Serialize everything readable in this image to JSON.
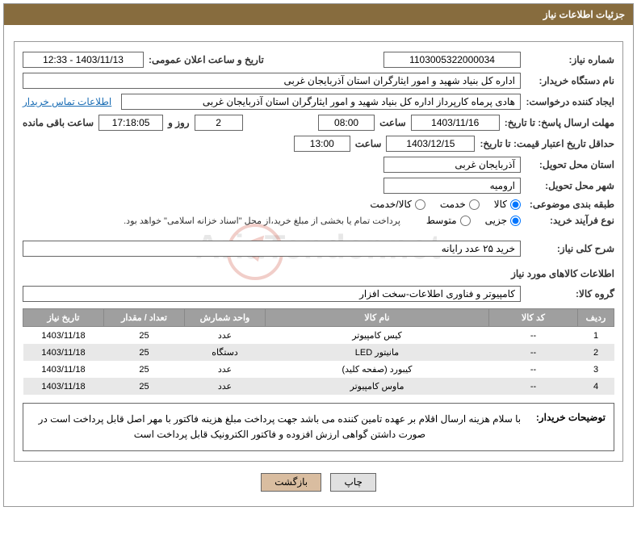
{
  "header": {
    "title": "جزئیات اطلاعات نیاز"
  },
  "fields": {
    "request_no_label": "شماره نیاز:",
    "request_no": "1103005322000034",
    "announce_label": "تاریخ و ساعت اعلان عمومی:",
    "announce_value": "1403/11/13 - 12:33",
    "buyer_org_label": "نام دستگاه خریدار:",
    "buyer_org": "اداره کل بنیاد شهید و امور ایثارگران استان آذربایجان غربی",
    "creator_label": "ایجاد کننده درخواست:",
    "creator": "هادی پرماه کارپرداز اداره کل بنیاد شهید و امور ایثارگران استان آذربایجان غربی",
    "contact_link": "اطلاعات تماس خریدار",
    "deadline_label": "مهلت ارسال پاسخ: تا تاریخ:",
    "deadline_date": "1403/11/16",
    "time_label": "ساعت",
    "deadline_time": "08:00",
    "days_count": "2",
    "days_and": "روز و",
    "remaining_time": "17:18:05",
    "remaining_label": "ساعت باقی مانده",
    "validity_label": "حداقل تاریخ اعتبار قیمت: تا تاریخ:",
    "validity_date": "1403/12/15",
    "validity_time": "13:00",
    "province_label": "استان محل تحویل:",
    "province": "آذربایجان غربی",
    "city_label": "شهر محل تحویل:",
    "city": "ارومیه",
    "category_label": "طبقه بندی موضوعی:",
    "category_opts": {
      "goods": "کالا",
      "service": "خدمت",
      "goods_service": "کالا/خدمت"
    },
    "purchase_type_label": "نوع فرآیند خرید:",
    "purchase_opts": {
      "partial": "جزیی",
      "medium": "متوسط"
    },
    "purchase_note": "پرداخت تمام یا بخشی از مبلغ خرید،از محل \"اسناد خزانه اسلامی\" خواهد بود.",
    "summary_label": "شرح کلی نیاز:",
    "summary": "خرید ۲۵ عدد رایانه",
    "goods_section": "اطلاعات کالاهای مورد نیاز",
    "goods_group_label": "گروه کالا:",
    "goods_group": "کامپیوتر و فناوری اطلاعات-سخت افزار",
    "buyer_note_label": "توضیحات خریدار:",
    "buyer_note": "با سلام هزینه ارسال اقلام بر عهده تامین کننده می باشد جهت پرداخت مبلغ هزینه فاکتور با مهر اصل قابل پرداخت است در صورت داشتن گواهی ارزش افزوده و فاکتور الکترونیک قابل پرداخت است"
  },
  "table": {
    "headers": {
      "row": "ردیف",
      "code": "کد کالا",
      "name": "نام کالا",
      "unit": "واحد شمارش",
      "qty": "تعداد / مقدار",
      "date": "تاریخ نیاز"
    },
    "rows": [
      {
        "row": "1",
        "code": "--",
        "name": "کیس کامپیوتر",
        "unit": "عدد",
        "qty": "25",
        "date": "1403/11/18"
      },
      {
        "row": "2",
        "code": "--",
        "name": "مانیتور LED",
        "unit": "دستگاه",
        "qty": "25",
        "date": "1403/11/18"
      },
      {
        "row": "3",
        "code": "--",
        "name": "کیبورد (صفحه کلید)",
        "unit": "عدد",
        "qty": "25",
        "date": "1403/11/18"
      },
      {
        "row": "4",
        "code": "--",
        "name": "ماوس کامپیوتر",
        "unit": "عدد",
        "qty": "25",
        "date": "1403/11/18"
      }
    ]
  },
  "buttons": {
    "print": "چاپ",
    "back": "بازگشت"
  },
  "watermark": "AriaTender.net",
  "colors": {
    "header_bg": "#876c3e",
    "th_bg": "#9f9f9f",
    "link": "#1a6db5",
    "btn_back_bg": "#d9bda0"
  }
}
